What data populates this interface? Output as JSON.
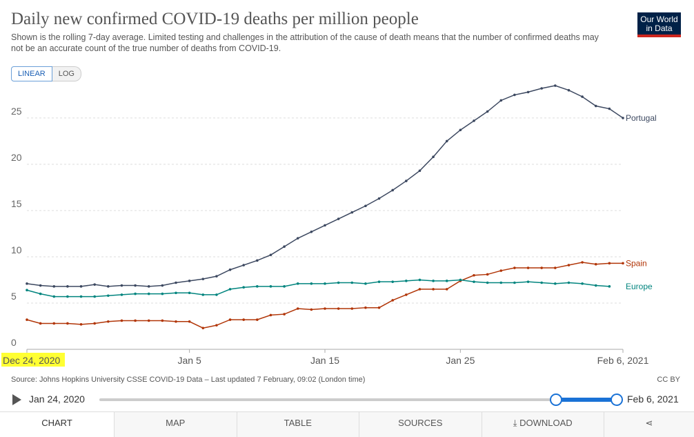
{
  "header": {
    "title": "Daily new confirmed COVID-19 deaths per million people",
    "subtitle": "Shown is the rolling 7-day average. Limited testing and challenges in the attribution of the cause of death means that the number of confirmed deaths may not be an accurate count of the true number of deaths from COVID-19.",
    "logo_line1": "Our World",
    "logo_line2": "in Data",
    "brand_colors": {
      "navy": "#002147",
      "red": "#ce261e"
    }
  },
  "scale_toggle": {
    "linear_label": "LINEAR",
    "log_label": "LOG",
    "selected": "LINEAR"
  },
  "chart_data": {
    "type": "line",
    "title": "Daily new confirmed COVID-19 deaths per million people",
    "xlabel": "",
    "ylabel": "",
    "x_range": [
      "2020-12-24",
      "2021-02-06"
    ],
    "x_days": 44,
    "ylim": [
      0,
      28.8
    ],
    "yticks": [
      0,
      5,
      10,
      15,
      20,
      25
    ],
    "xticks": [
      {
        "day": 0,
        "label": "Dec 24, 2020",
        "highlight": true
      },
      {
        "day": 12,
        "label": "Jan 5"
      },
      {
        "day": 22,
        "label": "Jan 15"
      },
      {
        "day": 32,
        "label": "Jan 25"
      },
      {
        "day": 44,
        "label": "Feb 6, 2021"
      }
    ],
    "grid": true,
    "series": [
      {
        "name": "Portugal",
        "color": "#3c4860",
        "values": [
          7.1,
          6.9,
          6.8,
          6.8,
          6.8,
          7.0,
          6.8,
          6.9,
          6.9,
          6.8,
          6.9,
          7.2,
          7.4,
          7.6,
          7.9,
          8.6,
          9.1,
          9.6,
          10.2,
          11.1,
          12.0,
          12.7,
          13.4,
          14.1,
          14.8,
          15.5,
          16.3,
          17.2,
          18.2,
          19.3,
          20.8,
          22.5,
          23.7,
          24.7,
          25.7,
          26.9,
          27.5,
          27.8,
          28.2,
          28.5,
          28.0,
          27.3,
          26.3,
          26.0,
          25.0
        ]
      },
      {
        "name": "Spain",
        "color": "#b13507",
        "values": [
          3.2,
          2.8,
          2.8,
          2.8,
          2.7,
          2.8,
          3.0,
          3.1,
          3.1,
          3.1,
          3.1,
          3.0,
          3.0,
          2.3,
          2.6,
          3.2,
          3.2,
          3.2,
          3.7,
          3.8,
          4.4,
          4.3,
          4.4,
          4.4,
          4.4,
          4.5,
          4.5,
          5.3,
          5.9,
          6.5,
          6.5,
          6.5,
          7.4,
          8.0,
          8.1,
          8.5,
          8.8,
          8.8,
          8.8,
          8.8,
          9.1,
          9.4,
          9.2,
          9.3,
          9.3
        ]
      },
      {
        "name": "Europe",
        "color": "#00847e",
        "values": [
          6.4,
          6.0,
          5.7,
          5.7,
          5.7,
          5.7,
          5.8,
          5.9,
          6.0,
          6.0,
          6.0,
          6.1,
          6.1,
          5.9,
          5.9,
          6.5,
          6.7,
          6.8,
          6.8,
          6.8,
          7.1,
          7.1,
          7.1,
          7.2,
          7.2,
          7.1,
          7.3,
          7.3,
          7.4,
          7.5,
          7.4,
          7.4,
          7.5,
          7.3,
          7.2,
          7.2,
          7.2,
          7.3,
          7.2,
          7.1,
          7.2,
          7.1,
          6.9,
          6.8,
          null
        ]
      }
    ]
  },
  "footer": {
    "source": "Source: Johns Hopkins University CSSE COVID-19 Data – Last updated 7 February, 09:02 (London time)",
    "license": "CC BY"
  },
  "timeline": {
    "start_label": "Jan 24, 2020",
    "end_label": "Feb 6, 2021",
    "selection_start_fraction": 0.882,
    "selection_end_fraction": 1.0
  },
  "tabs": [
    {
      "label": "Chart",
      "active": true
    },
    {
      "label": "Map"
    },
    {
      "label": "Table"
    },
    {
      "label": "Sources"
    },
    {
      "label": "⤓ Download"
    }
  ],
  "share_icon": "share-icon",
  "share_glyph": "⋖"
}
